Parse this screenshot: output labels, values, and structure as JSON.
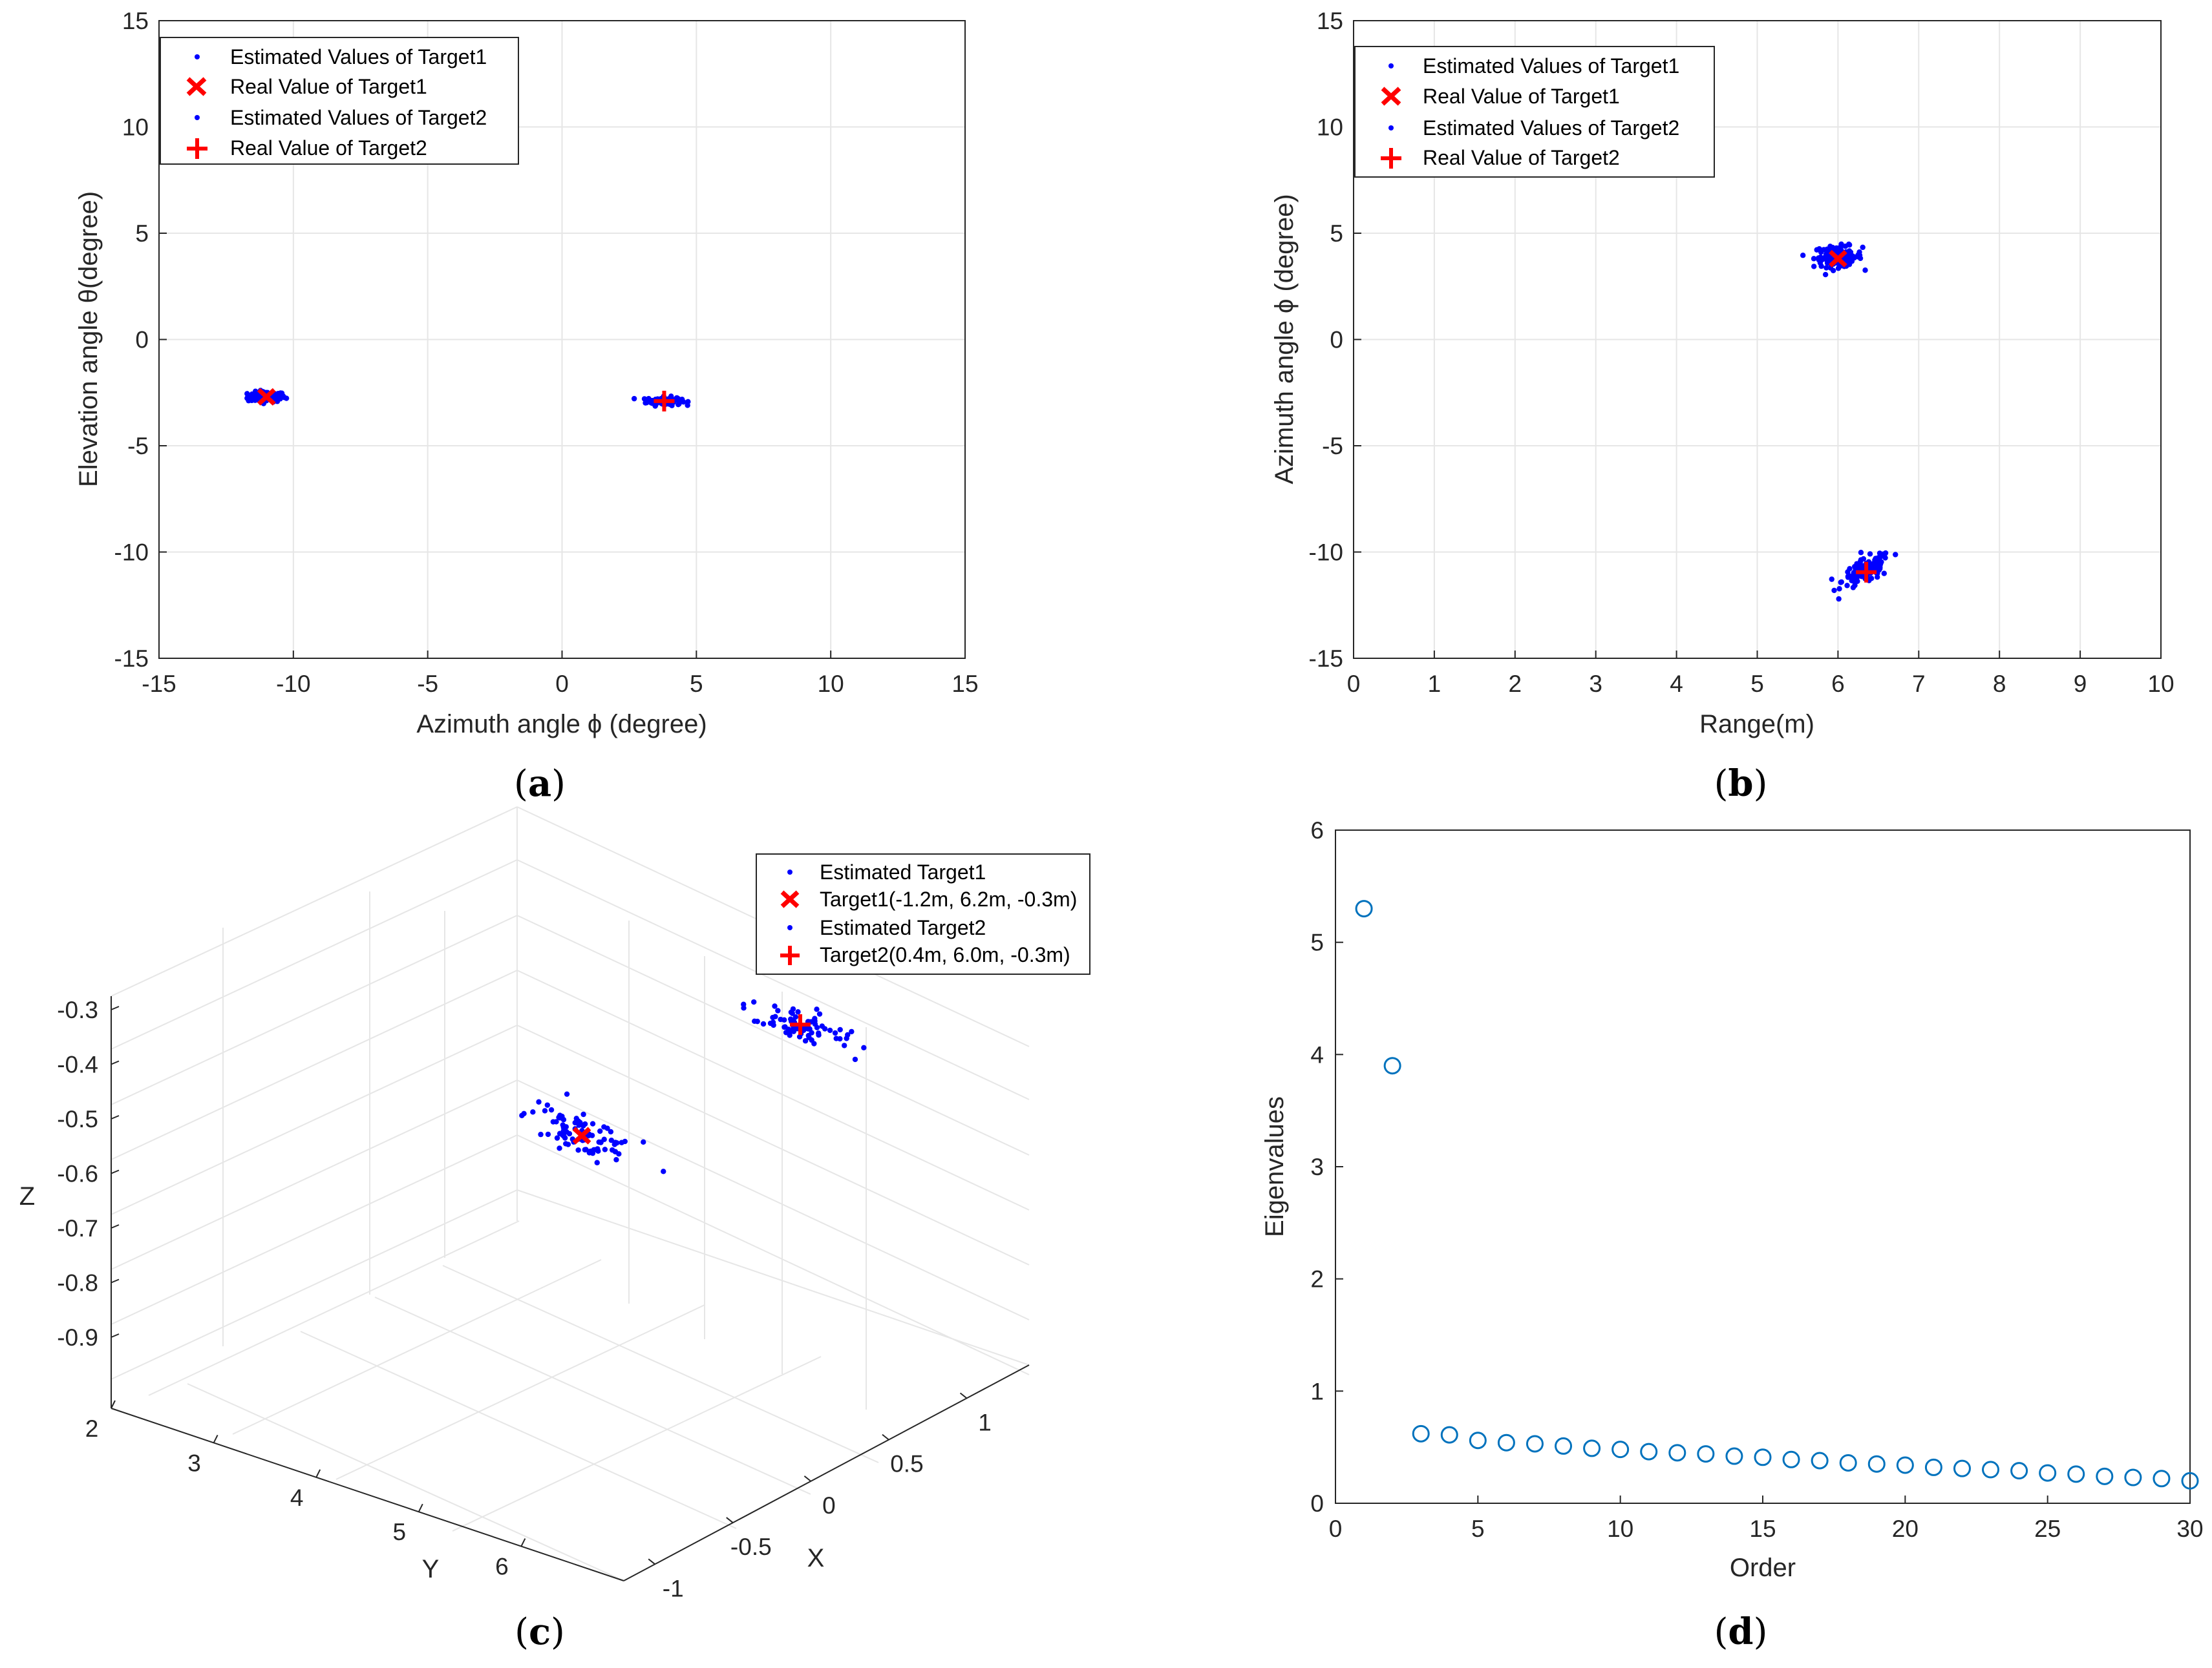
{
  "colors": {
    "estimate": "#0000ff",
    "real": "#ff0000",
    "eigen": "#0072bd",
    "grid": "#e6e6e6",
    "axis": "#262626"
  },
  "chart_data": [
    {
      "id": "a",
      "type": "scatter",
      "caption": {
        "open": "(",
        "letter": "a",
        "close": ")"
      },
      "xlabel": "Azimuth angle ϕ  (degree)",
      "ylabel": "Elevation angle θ(degree)",
      "xlim": [
        -15,
        15
      ],
      "ylim": [
        -15,
        15
      ],
      "xticks": [
        -15,
        -10,
        -5,
        0,
        5,
        10,
        15
      ],
      "yticks": [
        -15,
        -10,
        -5,
        0,
        5,
        10,
        15
      ],
      "grid": true,
      "legend_position": "top-left",
      "legend": [
        "Estimated Values of Target1",
        "Real Value of Target1",
        "Estimated Values of Target2",
        "Real Value of Target2"
      ],
      "series": [
        {
          "role": "estimate",
          "marker": "dot",
          "cluster": {
            "center": [
              -11.0,
              -2.7
            ],
            "spread": [
              0.35,
              0.12
            ],
            "n": 120
          }
        },
        {
          "role": "real",
          "marker": "x",
          "points": [
            [
              -11.0,
              -2.7
            ]
          ]
        },
        {
          "role": "estimate",
          "marker": "dot",
          "cluster": {
            "center": [
              3.8,
              -2.9
            ],
            "spread": [
              0.32,
              0.1
            ],
            "n": 110
          }
        },
        {
          "role": "real",
          "marker": "+",
          "points": [
            [
              3.8,
              -2.9
            ]
          ]
        }
      ]
    },
    {
      "id": "b",
      "type": "scatter",
      "caption": {
        "open": "(",
        "letter": "b",
        "close": ")"
      },
      "xlabel": "Range(m)",
      "ylabel": "Azimuth angle ϕ  (degree)",
      "xlim": [
        0,
        10
      ],
      "ylim": [
        -15,
        15
      ],
      "xticks": [
        0,
        1,
        2,
        3,
        4,
        5,
        6,
        7,
        8,
        9,
        10
      ],
      "yticks": [
        -15,
        -10,
        -5,
        0,
        5,
        10,
        15
      ],
      "grid": true,
      "legend_position": "top-left",
      "legend": [
        "Estimated Values of Target1",
        "Real Value of Target1",
        "Estimated Values of Target2",
        "Real Value of Target2"
      ],
      "series": [
        {
          "role": "estimate",
          "marker": "dot",
          "cluster": {
            "center": [
              6.0,
              3.9
            ],
            "spread": [
              0.15,
              0.25
            ],
            "n": 120
          }
        },
        {
          "role": "real",
          "marker": "x",
          "points": [
            [
              6.0,
              3.8
            ]
          ]
        },
        {
          "role": "estimate",
          "marker": "dot",
          "cluster": {
            "center": [
              6.35,
              -10.9
            ],
            "spread": [
              0.15,
              0.3
            ],
            "tilt": 1.6,
            "n": 120
          }
        },
        {
          "role": "real",
          "marker": "+",
          "points": [
            [
              6.35,
              -10.95
            ]
          ]
        }
      ]
    },
    {
      "id": "c",
      "type": "scatter",
      "projection": "3d",
      "caption": {
        "open": "(",
        "letter": "c",
        "close": ")"
      },
      "xlabel": "X",
      "ylabel": "Y",
      "zlabel": "Z",
      "xlim": [
        -1.2,
        1.4
      ],
      "ylim": [
        2,
        7
      ],
      "zlim": [
        -0.95,
        -0.25
      ],
      "xticks": [
        "-1",
        "-0.5",
        "0",
        "0.5",
        "1"
      ],
      "xtick_values": [
        -1,
        -0.5,
        0,
        0.5,
        1
      ],
      "yticks": [
        "2",
        "3",
        "4",
        "5",
        "6"
      ],
      "ytick_values": [
        2,
        3,
        4,
        5,
        6
      ],
      "zticks": [
        "-0.3",
        "-0.4",
        "-0.5",
        "-0.6",
        "-0.7",
        "-0.8",
        "-0.9"
      ],
      "ztick_values": [
        -0.3,
        -0.4,
        -0.5,
        -0.6,
        -0.7,
        -0.8,
        -0.9
      ],
      "grid": true,
      "legend_position": "top-right",
      "legend": [
        "Estimated Target1",
        "Target1(-1.2m, 6.2m, -0.3m)",
        "Estimated Target2",
        "Target2(0.4m, 6.0m, -0.3m)"
      ],
      "series": [
        {
          "role": "estimate",
          "marker": "dot",
          "cluster": {
            "center": [
              -1.2,
              6.2,
              -0.3
            ],
            "n": 90
          }
        },
        {
          "role": "real",
          "marker": "x",
          "points": [
            [
              -1.2,
              6.2,
              -0.3
            ]
          ]
        },
        {
          "role": "estimate",
          "marker": "dot",
          "cluster": {
            "center": [
              0.4,
              6.0,
              -0.3
            ],
            "n": 80
          }
        },
        {
          "role": "real",
          "marker": "+",
          "points": [
            [
              0.4,
              6.0,
              -0.3
            ]
          ]
        }
      ]
    },
    {
      "id": "d",
      "type": "scatter",
      "caption": {
        "open": "(",
        "letter": "d",
        "close": ")"
      },
      "xlabel": "Order",
      "ylabel": "Eigenvalues",
      "xlim": [
        0,
        30
      ],
      "ylim": [
        0,
        6
      ],
      "xticks": [
        0,
        5,
        10,
        15,
        20,
        25,
        30
      ],
      "yticks": [
        0,
        1,
        2,
        3,
        4,
        5,
        6
      ],
      "grid": false,
      "x": [
        1,
        2,
        3,
        4,
        5,
        6,
        7,
        8,
        9,
        10,
        11,
        12,
        13,
        14,
        15,
        16,
        17,
        18,
        19,
        20,
        21,
        22,
        23,
        24,
        25,
        26,
        27,
        28,
        29,
        30
      ],
      "values": [
        5.3,
        3.9,
        0.62,
        0.61,
        0.56,
        0.54,
        0.53,
        0.51,
        0.49,
        0.48,
        0.46,
        0.45,
        0.44,
        0.42,
        0.41,
        0.39,
        0.38,
        0.36,
        0.35,
        0.34,
        0.32,
        0.31,
        0.3,
        0.29,
        0.27,
        0.26,
        0.24,
        0.23,
        0.22,
        0.2
      ]
    }
  ]
}
